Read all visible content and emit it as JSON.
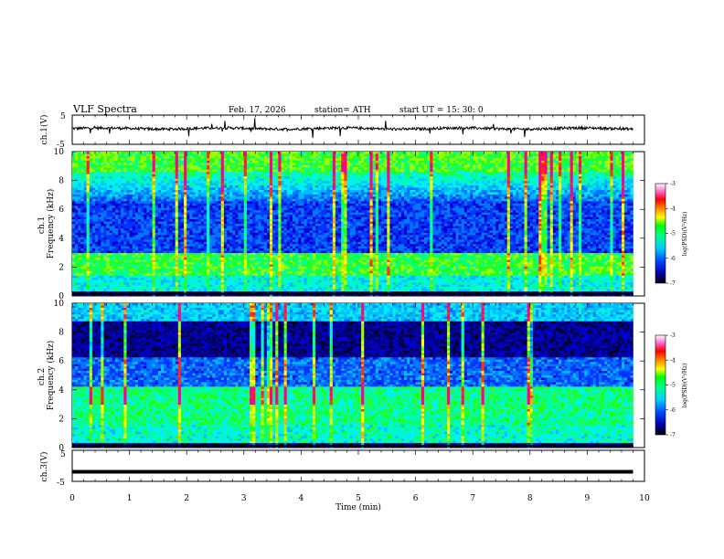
{
  "header": {
    "title": "VLF  Spectra",
    "date": "Feb. 17, 2026",
    "station": "station= ATH",
    "start_ut": "start  UT  =   15: 30: 0"
  },
  "chart_data": [
    {
      "type": "line",
      "panel": "ch1-voltage",
      "ylabel": "ch.1(V)",
      "ylim": [
        -5,
        5
      ],
      "yticks": [
        "5",
        "-5"
      ],
      "xlim": [
        0,
        10
      ],
      "baseline": 0.4,
      "color": "#000000"
    },
    {
      "type": "heatmap",
      "panel": "ch1-spectrogram",
      "ylabel": "ch.1\nFrequency  (kHz)",
      "ylim": [
        0,
        10
      ],
      "yticks": [
        "0",
        "2",
        "4",
        "6",
        "8",
        "10"
      ],
      "xlim": [
        0,
        9.8
      ],
      "colorbar": {
        "label": "log(PSD)(V²/Hz)",
        "range": [
          -7,
          -3
        ],
        "ticks": [
          "-3",
          "-4",
          "-5",
          "-6",
          "-7"
        ]
      }
    },
    {
      "type": "heatmap",
      "panel": "ch2-spectrogram",
      "ylabel": "ch.2\nFrequency  (kHz)",
      "ylim": [
        0,
        10
      ],
      "yticks": [
        "0",
        "2",
        "4",
        "6",
        "8",
        "10"
      ],
      "xlim": [
        0,
        9.8
      ],
      "colorbar": {
        "label": "log(PSD)(V²/Hz)",
        "range": [
          -7,
          -3
        ],
        "ticks": [
          "-3",
          "-4",
          "-5",
          "-6",
          "-7"
        ]
      }
    },
    {
      "type": "line",
      "panel": "ch3-voltage",
      "ylabel": "ch.3(V)",
      "ylim": [
        -5,
        5
      ],
      "yticks": [
        "5",
        "-5"
      ],
      "xlim": [
        0,
        10
      ],
      "baseline": -1.9,
      "color": "#000000"
    }
  ],
  "x_axis": {
    "label": "Time  (min)",
    "ticks": [
      "0",
      "1",
      "2",
      "3",
      "4",
      "5",
      "6",
      "7",
      "8",
      "9",
      "10"
    ],
    "range": [
      0,
      10
    ]
  },
  "colors": {
    "colormap": [
      "#ffffff",
      "#ff00ff",
      "#ff0000",
      "#ff8c00",
      "#ffff00",
      "#00ff00",
      "#00ffff",
      "#0066ff",
      "#0000cc",
      "#000000"
    ]
  }
}
